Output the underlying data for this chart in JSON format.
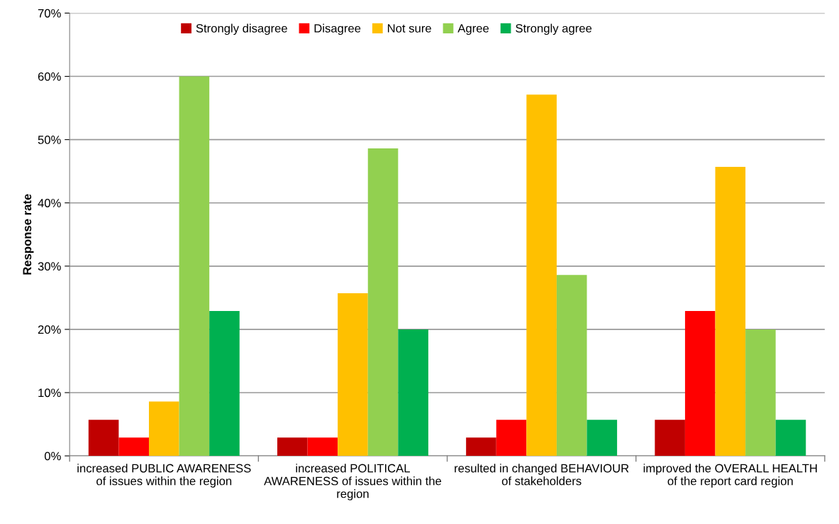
{
  "chart_data": {
    "type": "bar",
    "ylabel": "Response rate",
    "categories": [
      "increased PUBLIC AWARENESS of issues within the region",
      "increased POLITICAL AWARENESS of issues within the region",
      "resulted in changed BEHAVIOUR of stakeholders",
      "improved the OVERALL HEALTH of the report card region"
    ],
    "series": [
      {
        "name": "Strongly disagree",
        "color": "#c00000",
        "values": [
          5.7,
          2.9,
          2.9,
          5.7
        ]
      },
      {
        "name": "Disagree",
        "color": "#ff0000",
        "values": [
          2.9,
          2.9,
          5.7,
          22.9
        ]
      },
      {
        "name": "Not sure",
        "color": "#ffc000",
        "values": [
          8.6,
          25.7,
          57.1,
          45.7
        ]
      },
      {
        "name": "Agree",
        "color": "#92d050",
        "values": [
          60.0,
          48.6,
          28.6,
          20.0
        ]
      },
      {
        "name": "Strongly agree",
        "color": "#00b050",
        "values": [
          22.9,
          20.0,
          5.7,
          5.7
        ]
      }
    ],
    "ylim": [
      0,
      70
    ],
    "yticks": [
      {
        "value": 0,
        "label": "0%"
      },
      {
        "value": 10,
        "label": "10%"
      },
      {
        "value": 20,
        "label": "20%"
      },
      {
        "value": 30,
        "label": "30%"
      },
      {
        "value": 40,
        "label": "40%"
      },
      {
        "value": 50,
        "label": "50%"
      },
      {
        "value": 60,
        "label": "60%"
      },
      {
        "value": 70,
        "label": "70%"
      }
    ],
    "grid": "y",
    "legend": "top"
  }
}
